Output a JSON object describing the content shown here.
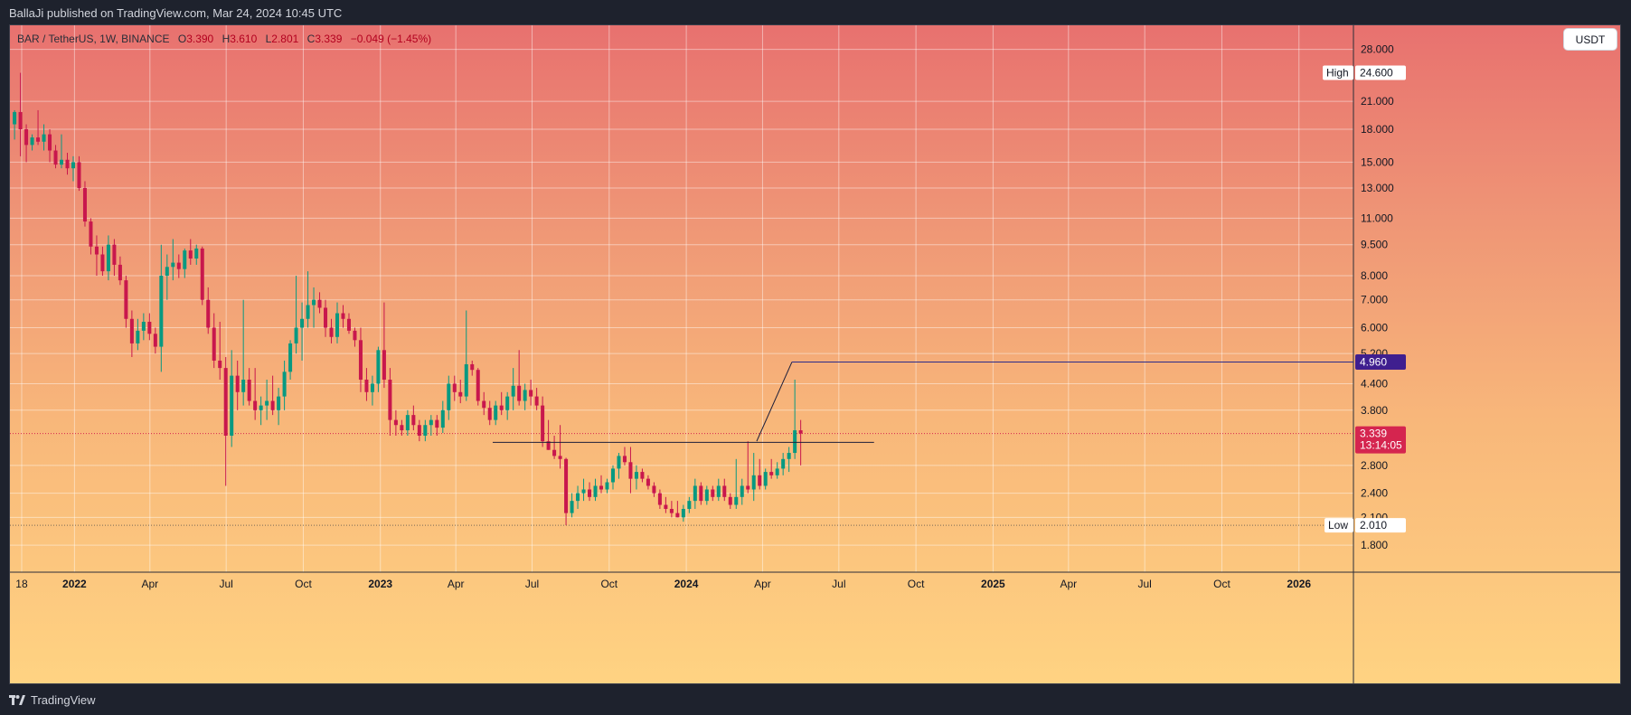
{
  "header": {
    "publisher_text": "BallaJi published on TradingView.com, Mar 24, 2024 10:45 UTC"
  },
  "footer": {
    "brand": "TradingView"
  },
  "legend": {
    "symbol": "BAR / TetherUS, 1W, BINANCE",
    "o_label": "O",
    "o_value": "3.390",
    "h_label": "H",
    "h_value": "3.610",
    "l_label": "L",
    "l_value": "2.801",
    "c_label": "C",
    "c_value": "3.339",
    "change": "−0.049 (−1.45%)"
  },
  "price_axis": {
    "unit_button": "USDT"
  },
  "markers": {
    "high": {
      "label": "High",
      "value": "24.600"
    },
    "low": {
      "label": "Low",
      "value": "2.010"
    },
    "target": {
      "value": "4.960"
    },
    "current": {
      "value": "3.339",
      "countdown": "13:14:05"
    }
  },
  "colors": {
    "up": "#089981",
    "down": "#c8174d",
    "gradient_top": "#e8716f",
    "gradient_bottom": "#ffd382",
    "target_badge": "#3f1f8f",
    "current_badge": "#d5254f",
    "drawing_line": "#1e1f3a"
  },
  "chart_data": {
    "type": "candlestick",
    "symbol": "BAR / TetherUS",
    "interval": "1W",
    "exchange": "BINANCE",
    "y_scale": "log",
    "ylim": [
      1.55,
      32.0
    ],
    "xlim": [
      "2021-10-16",
      "2026-03-07"
    ],
    "grid": true,
    "y_ticks": [
      "28.000",
      "21.000",
      "18.000",
      "15.000",
      "13.000",
      "11.000",
      "9.500",
      "8.000",
      "7.000",
      "6.000",
      "5.200",
      "4.400",
      "3.800",
      "2.800",
      "2.400",
      "2.100",
      "1.800"
    ],
    "x_ticks": [
      {
        "label": "18",
        "date": "2021-10-30"
      },
      {
        "label": "2022",
        "date": "2022-01-01"
      },
      {
        "label": "Apr",
        "date": "2022-04-01"
      },
      {
        "label": "Jul",
        "date": "2022-07-01"
      },
      {
        "label": "Oct",
        "date": "2022-10-01"
      },
      {
        "label": "2023",
        "date": "2023-01-01"
      },
      {
        "label": "Apr",
        "date": "2023-04-01"
      },
      {
        "label": "Jul",
        "date": "2023-07-01"
      },
      {
        "label": "Oct",
        "date": "2023-10-01"
      },
      {
        "label": "2024",
        "date": "2024-01-01"
      },
      {
        "label": "Apr",
        "date": "2024-04-01"
      },
      {
        "label": "Jul",
        "date": "2024-07-01"
      },
      {
        "label": "Oct",
        "date": "2024-10-01"
      },
      {
        "label": "2025",
        "date": "2025-01-01"
      },
      {
        "label": "Apr",
        "date": "2025-04-01"
      },
      {
        "label": "Jul",
        "date": "2025-07-01"
      },
      {
        "label": "Oct",
        "date": "2025-10-01"
      },
      {
        "label": "2026",
        "date": "2026-01-01"
      }
    ],
    "first_candle_date": "2021-10-18",
    "candle_interval_days": 7,
    "candles": [
      [
        18.5,
        20.0,
        17.0,
        19.8
      ],
      [
        19.8,
        24.6,
        15.5,
        18.0
      ],
      [
        18.0,
        18.5,
        15.0,
        16.5
      ],
      [
        16.5,
        17.5,
        16.0,
        17.2
      ],
      [
        17.2,
        20.0,
        16.5,
        16.8
      ],
      [
        16.8,
        18.5,
        16.0,
        17.5
      ],
      [
        17.5,
        18.0,
        15.0,
        16.0
      ],
      [
        16.0,
        16.5,
        14.5,
        14.8
      ],
      [
        14.8,
        17.5,
        14.5,
        15.2
      ],
      [
        15.2,
        15.8,
        14.0,
        14.5
      ],
      [
        14.5,
        15.5,
        13.5,
        15.0
      ],
      [
        15.0,
        15.5,
        12.8,
        13.0
      ],
      [
        13.0,
        13.5,
        10.5,
        10.8
      ],
      [
        10.8,
        11.0,
        9.0,
        9.4
      ],
      [
        9.4,
        10.0,
        8.0,
        9.0
      ],
      [
        9.0,
        9.4,
        8.0,
        8.2
      ],
      [
        8.2,
        10.0,
        7.8,
        9.5
      ],
      [
        9.5,
        9.8,
        8.0,
        8.5
      ],
      [
        8.5,
        8.9,
        7.6,
        7.8
      ],
      [
        7.8,
        8.0,
        6.0,
        6.3
      ],
      [
        6.3,
        6.6,
        5.1,
        5.5
      ],
      [
        5.5,
        6.3,
        5.3,
        5.9
      ],
      [
        5.9,
        6.5,
        5.6,
        6.2
      ],
      [
        6.2,
        6.5,
        5.6,
        5.8
      ],
      [
        5.8,
        6.0,
        5.2,
        5.4
      ],
      [
        5.4,
        9.5,
        4.7,
        8.0
      ],
      [
        8.0,
        9.0,
        7.0,
        8.4
      ],
      [
        8.4,
        9.8,
        7.8,
        8.6
      ],
      [
        8.6,
        9.0,
        7.9,
        8.3
      ],
      [
        8.3,
        9.3,
        7.9,
        9.2
      ],
      [
        9.2,
        9.8,
        8.5,
        8.8
      ],
      [
        8.8,
        9.5,
        8.5,
        9.3
      ],
      [
        9.3,
        9.4,
        6.8,
        7.0
      ],
      [
        7.0,
        7.5,
        5.8,
        6.0
      ],
      [
        6.0,
        6.5,
        4.8,
        5.0
      ],
      [
        5.0,
        6.2,
        4.5,
        4.8
      ],
      [
        4.8,
        5.1,
        2.5,
        3.3
      ],
      [
        3.3,
        5.3,
        3.1,
        4.6
      ],
      [
        4.6,
        5.0,
        3.8,
        4.2
      ],
      [
        4.2,
        7.0,
        3.9,
        4.5
      ],
      [
        4.5,
        4.8,
        3.9,
        4.0
      ],
      [
        4.0,
        4.8,
        3.6,
        3.8
      ],
      [
        3.8,
        4.1,
        3.5,
        3.9
      ],
      [
        3.9,
        4.5,
        3.6,
        4.0
      ],
      [
        4.0,
        4.6,
        3.7,
        3.8
      ],
      [
        3.8,
        4.3,
        3.5,
        4.1
      ],
      [
        4.1,
        5.0,
        3.8,
        4.7
      ],
      [
        4.7,
        5.6,
        4.5,
        5.5
      ],
      [
        5.5,
        8.0,
        5.2,
        6.0
      ],
      [
        6.0,
        6.9,
        5.0,
        6.3
      ],
      [
        6.3,
        8.2,
        6.0,
        6.8
      ],
      [
        6.8,
        7.5,
        6.0,
        7.0
      ],
      [
        7.0,
        7.3,
        6.5,
        6.7
      ],
      [
        6.7,
        7.0,
        5.7,
        6.0
      ],
      [
        6.0,
        6.3,
        5.5,
        5.7
      ],
      [
        5.7,
        6.9,
        5.5,
        6.5
      ],
      [
        6.5,
        6.8,
        6.0,
        6.3
      ],
      [
        6.3,
        6.5,
        5.8,
        5.9
      ],
      [
        5.9,
        6.0,
        5.4,
        5.6
      ],
      [
        5.6,
        6.0,
        4.2,
        4.5
      ],
      [
        4.5,
        4.8,
        4.0,
        4.2
      ],
      [
        4.2,
        4.6,
        3.9,
        4.4
      ],
      [
        4.4,
        5.4,
        4.2,
        5.3
      ],
      [
        5.3,
        6.9,
        4.3,
        4.5
      ],
      [
        4.5,
        4.8,
        3.3,
        3.6
      ],
      [
        3.6,
        3.8,
        3.3,
        3.5
      ],
      [
        3.5,
        3.6,
        3.3,
        3.4
      ],
      [
        3.4,
        3.8,
        3.3,
        3.7
      ],
      [
        3.7,
        3.9,
        3.4,
        3.5
      ],
      [
        3.5,
        3.6,
        3.2,
        3.3
      ],
      [
        3.3,
        3.6,
        3.2,
        3.5
      ],
      [
        3.5,
        3.7,
        3.3,
        3.6
      ],
      [
        3.6,
        3.7,
        3.3,
        3.45
      ],
      [
        3.45,
        4.0,
        3.35,
        3.8
      ],
      [
        3.8,
        4.6,
        3.6,
        4.4
      ],
      [
        4.4,
        4.6,
        4.0,
        4.2
      ],
      [
        4.2,
        4.5,
        3.95,
        4.1
      ],
      [
        4.1,
        6.6,
        4.0,
        4.9
      ],
      [
        4.9,
        5.0,
        4.6,
        4.75
      ],
      [
        4.75,
        4.8,
        3.9,
        4.0
      ],
      [
        4.0,
        4.2,
        3.7,
        3.85
      ],
      [
        3.85,
        4.0,
        3.5,
        3.6
      ],
      [
        3.6,
        4.0,
        3.5,
        3.9
      ],
      [
        3.9,
        4.2,
        3.7,
        3.8
      ],
      [
        3.8,
        4.2,
        3.6,
        4.1
      ],
      [
        4.1,
        4.8,
        3.8,
        4.35
      ],
      [
        4.35,
        5.3,
        3.9,
        4.0
      ],
      [
        4.0,
        4.4,
        3.8,
        4.25
      ],
      [
        4.25,
        4.5,
        3.9,
        4.1
      ],
      [
        4.1,
        4.3,
        3.8,
        3.9
      ],
      [
        3.9,
        4.1,
        3.1,
        3.2
      ],
      [
        3.2,
        3.6,
        3.05,
        3.05
      ],
      [
        3.05,
        3.3,
        2.9,
        2.95
      ],
      [
        2.95,
        3.5,
        2.75,
        2.9
      ],
      [
        2.9,
        2.92,
        2.01,
        2.15
      ],
      [
        2.15,
        2.4,
        2.1,
        2.3
      ],
      [
        2.3,
        2.5,
        2.2,
        2.4
      ],
      [
        2.4,
        2.6,
        2.3,
        2.45
      ],
      [
        2.45,
        2.55,
        2.3,
        2.35
      ],
      [
        2.35,
        2.6,
        2.3,
        2.5
      ],
      [
        2.5,
        2.65,
        2.4,
        2.45
      ],
      [
        2.45,
        2.6,
        2.4,
        2.55
      ],
      [
        2.55,
        2.8,
        2.45,
        2.75
      ],
      [
        2.75,
        3.0,
        2.6,
        2.95
      ],
      [
        2.95,
        3.1,
        2.8,
        2.85
      ],
      [
        2.85,
        3.1,
        2.4,
        2.6
      ],
      [
        2.6,
        2.8,
        2.45,
        2.7
      ],
      [
        2.7,
        2.75,
        2.55,
        2.6
      ],
      [
        2.6,
        2.65,
        2.45,
        2.5
      ],
      [
        2.5,
        2.55,
        2.35,
        2.4
      ],
      [
        2.4,
        2.45,
        2.2,
        2.25
      ],
      [
        2.25,
        2.35,
        2.15,
        2.2
      ],
      [
        2.2,
        2.3,
        2.1,
        2.15
      ],
      [
        2.15,
        2.3,
        2.1,
        2.1
      ],
      [
        2.1,
        2.25,
        2.05,
        2.2
      ],
      [
        2.2,
        2.35,
        2.15,
        2.3
      ],
      [
        2.3,
        2.6,
        2.2,
        2.5
      ],
      [
        2.5,
        2.55,
        2.25,
        2.3
      ],
      [
        2.3,
        2.5,
        2.25,
        2.45
      ],
      [
        2.45,
        2.5,
        2.3,
        2.35
      ],
      [
        2.35,
        2.6,
        2.3,
        2.5
      ],
      [
        2.5,
        2.6,
        2.3,
        2.35
      ],
      [
        2.35,
        2.4,
        2.2,
        2.25
      ],
      [
        2.25,
        2.9,
        2.2,
        2.35
      ],
      [
        2.35,
        2.6,
        2.25,
        2.5
      ],
      [
        2.5,
        3.2,
        2.4,
        2.45
      ],
      [
        2.45,
        3.0,
        2.3,
        2.65
      ],
      [
        2.65,
        2.9,
        2.45,
        2.5
      ],
      [
        2.5,
        2.75,
        2.45,
        2.7
      ],
      [
        2.7,
        2.9,
        2.6,
        2.65
      ],
      [
        2.65,
        2.85,
        2.6,
        2.75
      ],
      [
        2.75,
        3.0,
        2.65,
        2.9
      ],
      [
        2.9,
        3.1,
        2.7,
        3.0
      ],
      [
        3.0,
        4.5,
        2.9,
        3.4
      ],
      [
        3.4,
        3.6,
        2.8,
        3.339
      ]
    ],
    "drawings": {
      "resistance_line": {
        "value": 3.18,
        "from": "2023-05-15",
        "to": "2024-08-12"
      },
      "projection": [
        {
          "date": "2024-03-25",
          "value": 3.2
        },
        {
          "date": "2024-05-06",
          "value": 4.96
        }
      ],
      "target_line": {
        "value": 4.96,
        "from": "2024-05-06",
        "to": "2026-03-07"
      },
      "current_price_line": 3.339,
      "low_line": 2.01
    }
  }
}
